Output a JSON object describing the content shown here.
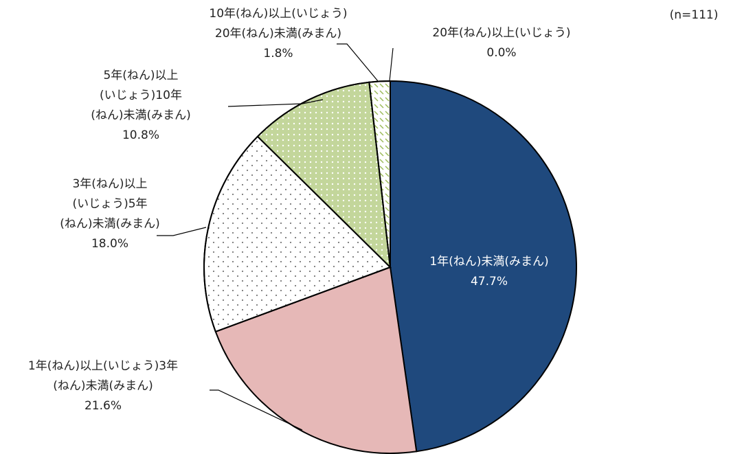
{
  "chart_data": {
    "type": "pie",
    "annotation": "(n=111)",
    "categories": [
      [
        "1年(ねん)未満(みまん)"
      ],
      [
        "1年(ねん)以上(いじょう)3年",
        "(ねん)未満(みまん)"
      ],
      [
        "3年(ねん)以上",
        "(いじょう)5年",
        "(ねん)未満(みまん)"
      ],
      [
        "5年(ねん)以上",
        "(いじょう)10年",
        "(ねん)未満(みまん)"
      ],
      [
        "10年(ねん)以上(いじょう)",
        "20年(ねん)未満(みまん)"
      ],
      [
        "20年(ねん)以上(いじょう)"
      ]
    ],
    "values": [
      47.7,
      21.6,
      18.0,
      10.8,
      1.8,
      0.0
    ],
    "value_labels": [
      "47.7%",
      "21.6%",
      "18.0%",
      "10.8%",
      "1.8%",
      "0.0%"
    ],
    "colors": [
      "#1f497d",
      "#e6b8b7",
      "#ffffff",
      "#d8e4bc",
      "#ffffff",
      "#ffffff"
    ]
  }
}
